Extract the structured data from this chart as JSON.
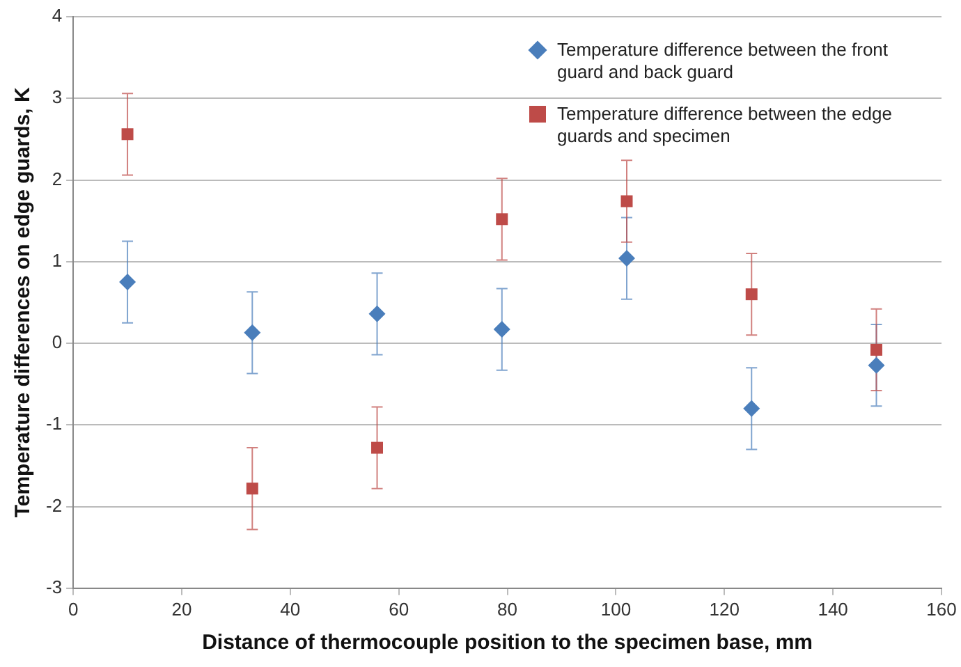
{
  "chart_data": {
    "type": "scatter",
    "xlabel": "Distance of thermocouple position to the specimen base, mm",
    "ylabel": "Temperature differences on edge guards, K",
    "x": [
      10,
      33,
      56,
      79,
      102,
      125,
      148
    ],
    "series": [
      {
        "name": "Temperature difference between the front guard and back guard",
        "color": "#4a7ebb",
        "marker": "diamond",
        "values": [
          0.75,
          0.13,
          0.36,
          0.17,
          1.04,
          -0.8,
          -0.27
        ],
        "errors": [
          0.5,
          0.5,
          0.5,
          0.5,
          0.5,
          0.5,
          0.5
        ]
      },
      {
        "name": "Temperature difference between the edge guards and specimen",
        "color": "#be4b48",
        "marker": "square",
        "values": [
          2.56,
          -1.78,
          -1.28,
          1.52,
          1.74,
          0.6,
          -0.08
        ],
        "errors": [
          0.5,
          0.5,
          0.5,
          0.5,
          0.5,
          0.5,
          0.5
        ]
      }
    ],
    "xlim": [
      0,
      160
    ],
    "xticks": [
      0,
      20,
      40,
      60,
      80,
      100,
      120,
      140,
      160
    ],
    "ylim": [
      -3,
      4
    ],
    "yticks": [
      -3,
      -2,
      -1,
      0,
      1,
      2,
      3,
      4
    ],
    "grid": "y",
    "legend": "top right"
  }
}
